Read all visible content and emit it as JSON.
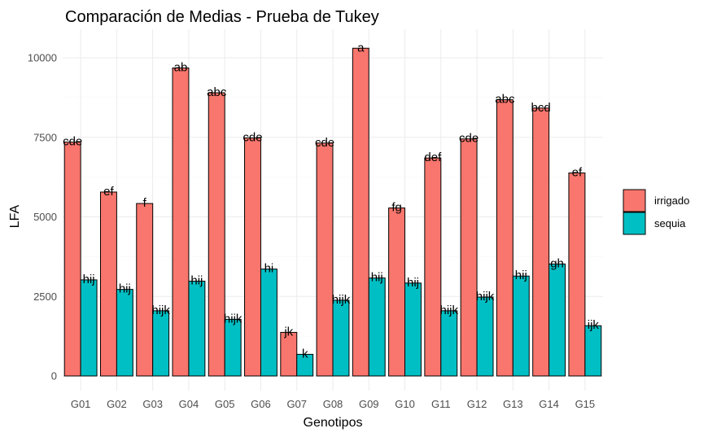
{
  "chart_data": {
    "type": "bar",
    "title": "Comparación de Medias - Prueba de Tukey",
    "xlabel": "Genotipos",
    "ylabel": "LFA",
    "categories": [
      "G01",
      "G02",
      "G03",
      "G04",
      "G05",
      "G06",
      "G07",
      "G08",
      "G09",
      "G10",
      "G11",
      "G12",
      "G13",
      "G14",
      "G15"
    ],
    "ylim": [
      0,
      10500
    ],
    "yticks": [
      0,
      2500,
      5000,
      7500,
      10000
    ],
    "ytick_labels": [
      "0",
      "2500",
      "5000",
      "7500",
      "10000"
    ],
    "grid": true,
    "legend_position": "right",
    "series": [
      {
        "name": "irrigado",
        "color": "#F8766D",
        "values": [
          7350,
          5780,
          5420,
          9680,
          8900,
          7480,
          1370,
          7320,
          10300,
          5280,
          6850,
          7450,
          8680,
          8420,
          6380
        ],
        "labels": [
          "cde",
          "ef",
          "f",
          "ab",
          "abc",
          "cde",
          "jk",
          "cde",
          "a",
          "fg",
          "def",
          "cde",
          "abc",
          "bcd",
          "ef"
        ]
      },
      {
        "name": "sequia",
        "color": "#00BFC4",
        "values": [
          3020,
          2720,
          2050,
          2980,
          1780,
          3360,
          680,
          2380,
          3080,
          2920,
          2050,
          2480,
          3140,
          3520,
          1580
        ],
        "labels": [
          "hij",
          "hij",
          "hijk",
          "hij",
          "hijk",
          "hi",
          "k",
          "hijk",
          "hij",
          "hij",
          "hijk",
          "hijk",
          "hij",
          "gh",
          "ijk"
        ]
      }
    ]
  }
}
